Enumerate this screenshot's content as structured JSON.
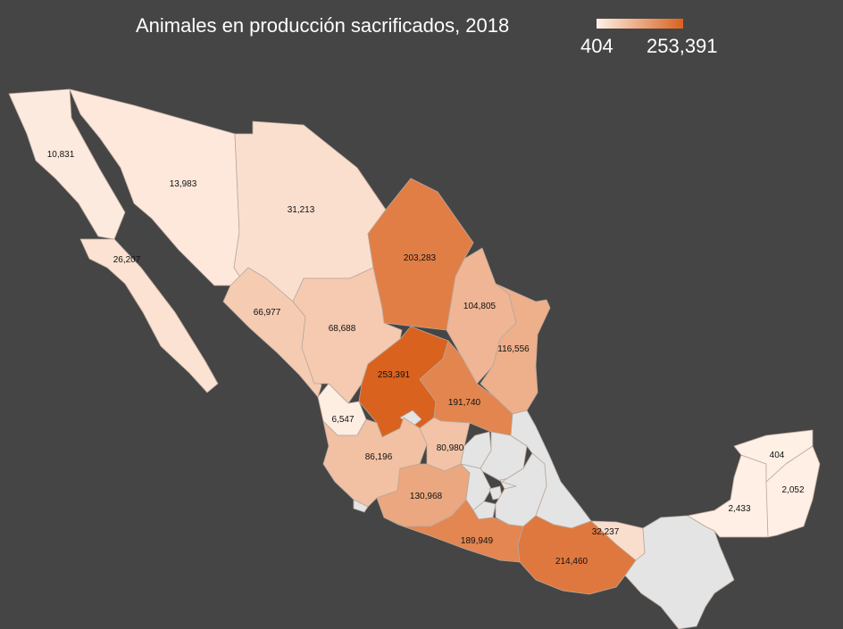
{
  "title": "Animales en producción sacrificados, 2018",
  "legend": {
    "min_label": "404",
    "max_label": "253,391",
    "min_value": 404,
    "max_value": 253391,
    "color_low": "#fff0e6",
    "color_high": "#d9621f",
    "no_data_color": "#e4e4e4",
    "border_color": "#b9a79b"
  },
  "background_color": "#454545",
  "chart_data": {
    "type": "choropleth",
    "regions": [
      {
        "name": "Baja California",
        "value": 10831,
        "label": "10,831"
      },
      {
        "name": "Baja California Sur",
        "value": 26207,
        "label": "26,207"
      },
      {
        "name": "Sonora",
        "value": 13983,
        "label": "13,983"
      },
      {
        "name": "Chihuahua",
        "value": 31213,
        "label": "31,213"
      },
      {
        "name": "Coahuila",
        "value": 203283,
        "label": "203,283"
      },
      {
        "name": "Nuevo León",
        "value": 104805,
        "label": "104,805"
      },
      {
        "name": "Tamaulipas",
        "value": 116556,
        "label": "116,556"
      },
      {
        "name": "Sinaloa",
        "value": 66977,
        "label": "66,977"
      },
      {
        "name": "Durango",
        "value": 68688,
        "label": "68,688"
      },
      {
        "name": "Zacatecas",
        "value": 253391,
        "label": "253,391"
      },
      {
        "name": "San Luis Potosí",
        "value": 191740,
        "label": "191,740"
      },
      {
        "name": "Nayarit",
        "value": 6547,
        "label": "6,547"
      },
      {
        "name": "Aguascalientes",
        "value": null,
        "label": ""
      },
      {
        "name": "Jalisco",
        "value": 86196,
        "label": "86,196"
      },
      {
        "name": "Guanajuato",
        "value": 80980,
        "label": "80,980"
      },
      {
        "name": "Querétaro",
        "value": null,
        "label": ""
      },
      {
        "name": "Hidalgo",
        "value": null,
        "label": ""
      },
      {
        "name": "Colima",
        "value": null,
        "label": ""
      },
      {
        "name": "Michoacán",
        "value": 130968,
        "label": "130,968"
      },
      {
        "name": "Estado de México",
        "value": null,
        "label": ""
      },
      {
        "name": "Ciudad de México",
        "value": null,
        "label": ""
      },
      {
        "name": "Morelos",
        "value": null,
        "label": ""
      },
      {
        "name": "Tlaxcala",
        "value": null,
        "label": ""
      },
      {
        "name": "Puebla",
        "value": null,
        "label": ""
      },
      {
        "name": "Veracruz",
        "value": null,
        "label": ""
      },
      {
        "name": "Guerrero",
        "value": 189949,
        "label": "189,949"
      },
      {
        "name": "Oaxaca",
        "value": 214460,
        "label": "214,460"
      },
      {
        "name": "Tabasco",
        "value": 32237,
        "label": "32,237"
      },
      {
        "name": "Chiapas",
        "value": null,
        "label": ""
      },
      {
        "name": "Campeche",
        "value": 2433,
        "label": "2,433"
      },
      {
        "name": "Yucatán",
        "value": 404,
        "label": "404"
      },
      {
        "name": "Quintana Roo",
        "value": 2052,
        "label": "2,052"
      }
    ]
  }
}
